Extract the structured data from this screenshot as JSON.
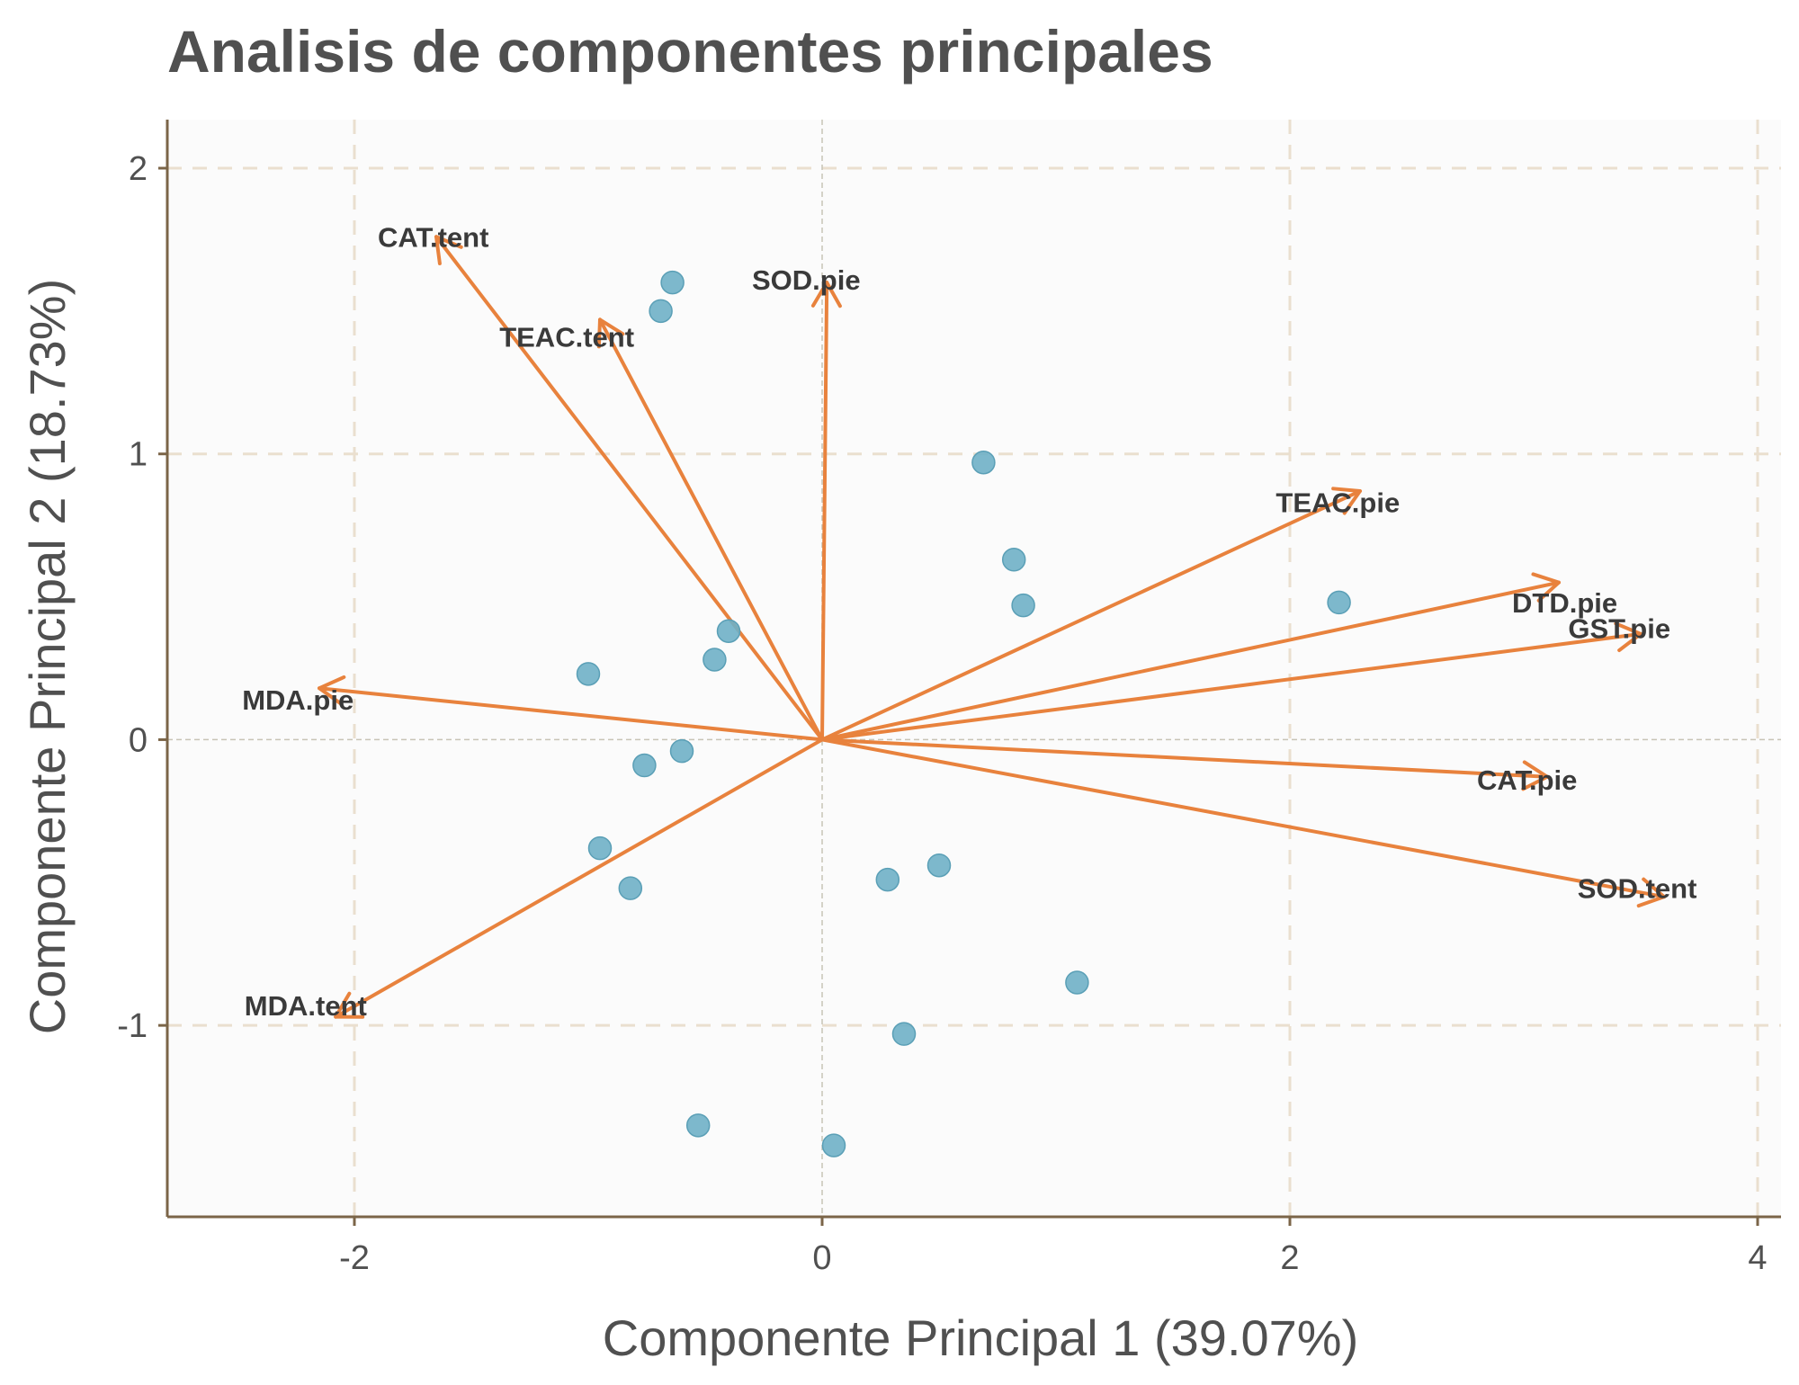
{
  "colors": {
    "background": "#ffffff",
    "panel": "#fbfbfb",
    "grid": "#eadfcf",
    "zero_lines": "#c8c4b6",
    "axis": "#7b6548",
    "points": "#6fb0c6",
    "arrows": "#e8823d",
    "text": "#505050",
    "labels": "#3a3a3a"
  },
  "chart_data": {
    "type": "scatter",
    "title": "Analisis de componentes principales",
    "xlabel": "Componente Principal 1 (39.07%)",
    "ylabel": "Componente Principal 2 (18.73%)",
    "xlim": [
      -2.8,
      4.1
    ],
    "ylim": [
      -1.67,
      2.17
    ],
    "xticks": [
      -2,
      0,
      2,
      4
    ],
    "xtick_labels": [
      "-2",
      "0",
      "2",
      "4"
    ],
    "yticks": [
      -1,
      0,
      1,
      2
    ],
    "ytick_labels": [
      "-1",
      "0",
      "1",
      "2"
    ],
    "grid": true,
    "points": [
      {
        "x": -0.64,
        "y": 1.6
      },
      {
        "x": -0.69,
        "y": 1.5
      },
      {
        "x": 0.69,
        "y": 0.97
      },
      {
        "x": 0.82,
        "y": 0.63
      },
      {
        "x": 0.86,
        "y": 0.47
      },
      {
        "x": 2.21,
        "y": 0.48
      },
      {
        "x": -0.4,
        "y": 0.38
      },
      {
        "x": -0.46,
        "y": 0.28
      },
      {
        "x": -1.0,
        "y": 0.23
      },
      {
        "x": -0.6,
        "y": -0.04
      },
      {
        "x": -0.76,
        "y": -0.09
      },
      {
        "x": -0.95,
        "y": -0.38
      },
      {
        "x": -0.82,
        "y": -0.52
      },
      {
        "x": 0.28,
        "y": -0.49
      },
      {
        "x": 0.5,
        "y": -0.44
      },
      {
        "x": 1.09,
        "y": -0.85
      },
      {
        "x": 0.35,
        "y": -1.03
      },
      {
        "x": -0.53,
        "y": -1.35
      },
      {
        "x": 0.05,
        "y": -1.42
      }
    ],
    "loadings": [
      {
        "name": "CAT.tent",
        "x": -1.65,
        "y": 1.76,
        "label_x": -1.9,
        "label_y": 1.76
      },
      {
        "name": "TEAC.tent",
        "x": -0.95,
        "y": 1.47,
        "label_x": -1.38,
        "label_y": 1.41
      },
      {
        "name": "SOD.pie",
        "x": 0.02,
        "y": 1.6,
        "label_x": -0.3,
        "label_y": 1.61
      },
      {
        "name": "TEAC.pie",
        "x": 2.3,
        "y": 0.87,
        "label_x": 1.94,
        "label_y": 0.83
      },
      {
        "name": "DTD.pie",
        "x": 3.15,
        "y": 0.55,
        "label_x": 2.95,
        "label_y": 0.48
      },
      {
        "name": "GST.pie",
        "x": 3.5,
        "y": 0.37,
        "label_x": 3.19,
        "label_y": 0.39
      },
      {
        "name": "MDA.pie",
        "x": -2.15,
        "y": 0.18,
        "label_x": -2.48,
        "label_y": 0.14
      },
      {
        "name": "CAT.pie",
        "x": 3.1,
        "y": -0.13,
        "label_x": 2.8,
        "label_y": -0.14
      },
      {
        "name": "SOD.tent",
        "x": 3.6,
        "y": -0.55,
        "label_x": 3.23,
        "label_y": -0.52
      },
      {
        "name": "MDA.tent",
        "x": -2.08,
        "y": -0.97,
        "label_x": -2.47,
        "label_y": -0.93
      }
    ]
  }
}
